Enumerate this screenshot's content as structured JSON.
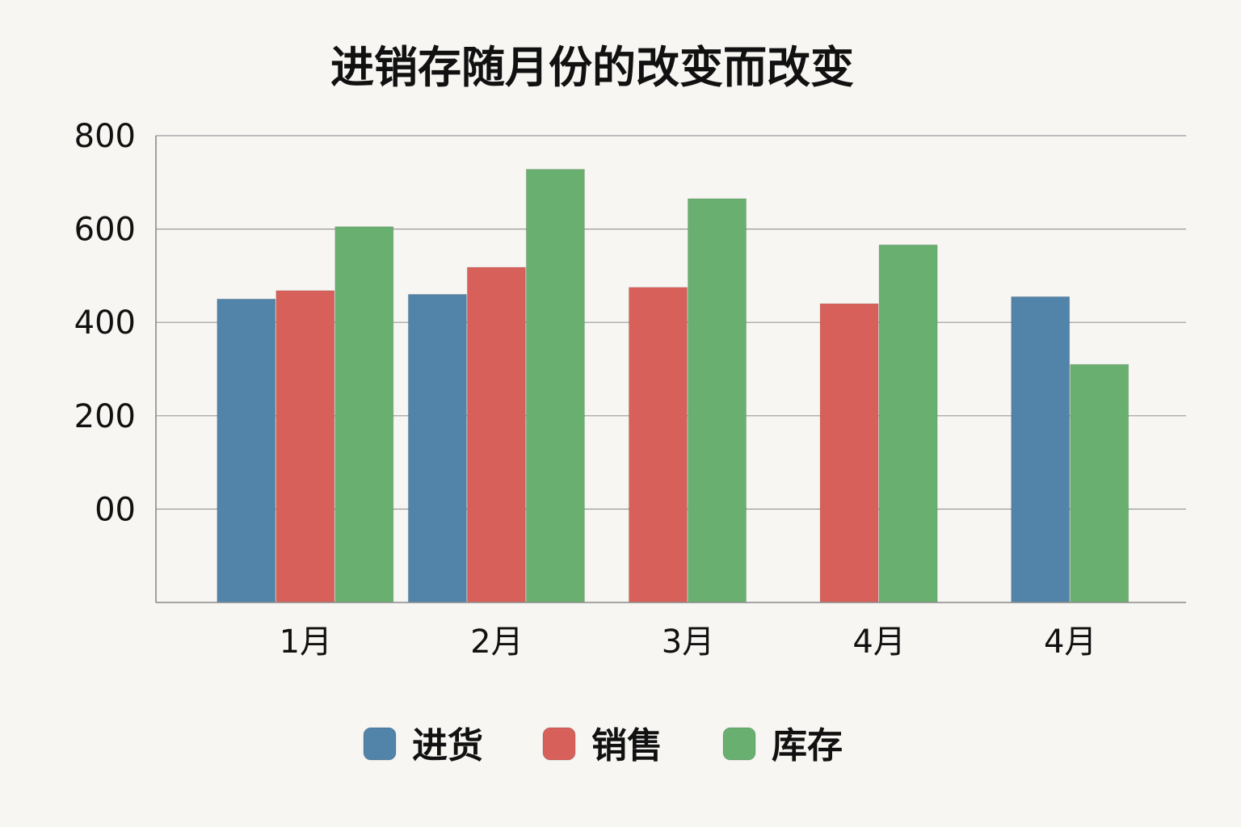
{
  "chart_data": {
    "type": "bar",
    "title": "进销存随月份的改变而改变",
    "xlabel": "",
    "ylabel": "",
    "categories": [
      "1月",
      "2月",
      "3月",
      "4月",
      "4月"
    ],
    "y_tick_labels": [
      "00",
      "200",
      "400",
      "600",
      "800"
    ],
    "y_tick_values": [
      0,
      200,
      400,
      600,
      800
    ],
    "ylim": [
      -200,
      800
    ],
    "grid": true,
    "legend_position": "bottom",
    "series": [
      {
        "name": "进货",
        "color": "#5283a8",
        "values": [
          450,
          460,
          null,
          null,
          455
        ]
      },
      {
        "name": "销售",
        "color": "#d8605a",
        "values": [
          468,
          518,
          475,
          440,
          null
        ]
      },
      {
        "name": "库存",
        "color": "#69b070",
        "values": [
          605,
          728,
          665,
          566,
          310
        ]
      }
    ]
  }
}
